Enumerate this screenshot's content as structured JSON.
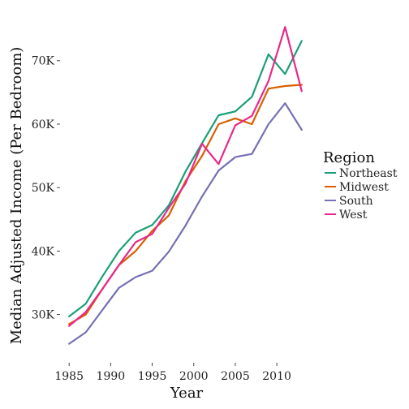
{
  "chart_data": {
    "type": "line",
    "xlabel": "Year",
    "ylabel": "Median Adjusted Income (Per Bedroom)",
    "xlim": [
      1984.2,
      2013.8
    ],
    "ylim": [
      23300,
      77000
    ],
    "x_ticks": [
      1985,
      1990,
      1995,
      2000,
      2005,
      2010
    ],
    "x_tick_labels": [
      "1985",
      "1990",
      "1995",
      "2000",
      "2005",
      "2010"
    ],
    "y_ticks": [
      30000,
      40000,
      50000,
      60000,
      70000
    ],
    "y_tick_labels": [
      "30K",
      "40K",
      "50K",
      "60K",
      "70K"
    ],
    "grid": false,
    "legend": {
      "title": "Region",
      "position": "right"
    },
    "x": [
      1985,
      1987,
      1989,
      1991,
      1993,
      1995,
      1997,
      1999,
      2001,
      2003,
      2005,
      2007,
      2009,
      2011,
      2013
    ],
    "series": [
      {
        "name": "Northeast",
        "color": "#1b9e77",
        "values": [
          29700,
          31700,
          36000,
          40000,
          42900,
          44100,
          47200,
          52500,
          57000,
          61400,
          62000,
          64300,
          71000,
          67900,
          73100
        ]
      },
      {
        "name": "Midwest",
        "color": "#d95f02",
        "values": [
          28500,
          30000,
          34000,
          37800,
          40000,
          43200,
          45600,
          51000,
          55000,
          60000,
          60900,
          60000,
          65600,
          66000,
          66200
        ]
      },
      {
        "name": "South",
        "color": "#7570b3",
        "values": [
          25400,
          27200,
          30700,
          34200,
          35900,
          36900,
          39900,
          44000,
          48600,
          52700,
          54800,
          55300,
          60000,
          63300,
          59100
        ]
      },
      {
        "name": "West",
        "color": "#e7298a",
        "values": [
          28200,
          30400,
          34000,
          37800,
          41400,
          42700,
          46800,
          50600,
          56900,
          53700,
          59800,
          61300,
          66800,
          75300,
          65200
        ]
      }
    ]
  }
}
